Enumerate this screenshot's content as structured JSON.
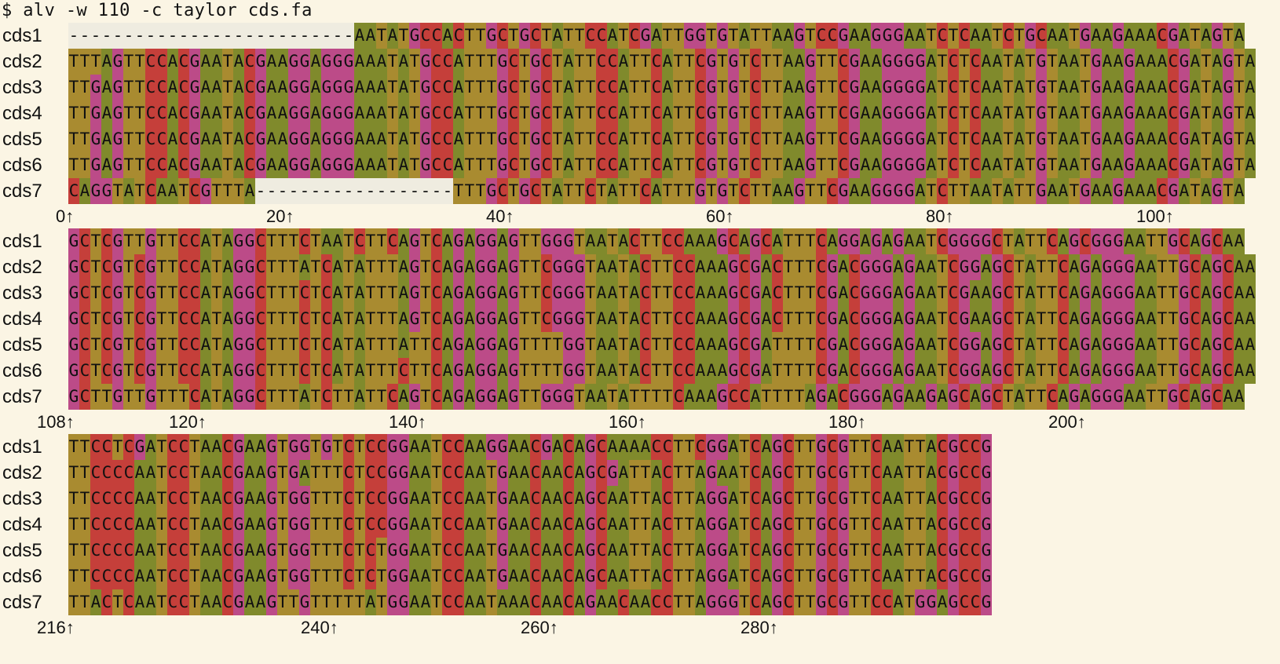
{
  "terminal": {
    "command": "$ alv -w 110 -c taylor cds.fa"
  },
  "colors": {
    "A": "#808a2c",
    "C": "#c53f3a",
    "G": "#bc4b88",
    "T": "#a98b30",
    "gap": "#efece0"
  },
  "blocks": [
    {
      "start": 0,
      "rows": [
        {
          "name": "cds1",
          "seq": "--------------------------AATATGCCACTTGCTGCTATTCCATCGATTGGTGTATTAAGTCCGAAGGGAATCTCAATCTGCAATGAAGAAACGATAGTA"
        },
        {
          "name": "cds2",
          "seq": "TTTAGTTCCACGAATACGAAGGAGGGAAATATGCCATTTGCTGCTATTCCATTCATTCGTGTCTTAAGTTCGAAGGGGATCTCAATATGTAATGAAGAAACGATAGTA"
        },
        {
          "name": "cds3",
          "seq": "TTGAGTTCCACGAATACGAAGGAGGGAAATATGCCATTTGCTGCTATTCCATTCATTCGTGTCTTAAGTTCGAAGGGGATCTCAATATGTAATGAAGAAACGATAGTA"
        },
        {
          "name": "cds4",
          "seq": "TTGAGTTCCACGAATACGAAGGAGGGAAATATGCCATTTGCTGCTATTCCATTCATTCGTGTCTTAAGTTCGAAGGGGATCTCAATATGTAATGAAGAAACGATAGTA"
        },
        {
          "name": "cds5",
          "seq": "TTGAGTTCCACGAATACGAAGGAGGGAAATATGCCATTTGCTGCTATTCCATTCATTCGTGTCTTAAGTTCGAAGGGGATCTCAATATGTAATGAAGAAACGATAGTA"
        },
        {
          "name": "cds6",
          "seq": "TTGAGTTCCACGAATACGAAGGAGGGAAATATGCCATTTGCTGCTATTCCATTCATTCGTGTCTTAAGTTCGAAGGGGATCTCAATATGTAATGAAGAAACGATAGTA"
        },
        {
          "name": "cds7",
          "seq": "CAGGTATCAATCGTTTA------------------TTTGCTGCTATTCTATTCATTTGTGTCTTAAGTTCGAAGGGGATCTTAATATTGAATGAAGAAACGATAGTA"
        }
      ],
      "ticks": [
        "0↑",
        "20↑",
        "40↑",
        "60↑",
        "80↑",
        "100↑"
      ]
    },
    {
      "start": 108,
      "rows": [
        {
          "name": "cds1",
          "seq": "GCTCGTTGTTCCATAGGCTTTCTAATCTTCAGTCAGAGGAGTTGGGTAATACTTCCAAAGCAGCATTTCAGGAGAGAATCGGGGCTATTCAGCGGGAATTGCAGCAA"
        },
        {
          "name": "cds2",
          "seq": "GCTCGTCGTTCCATAGGCTTTATCATATTTAGTCAGAGGAGTTCGGGTAATACTTCCAAAGCGACTTTCGACGGGAGAATCGGAGCTATTCAGAGGGAATTGCAGCAA"
        },
        {
          "name": "cds3",
          "seq": "GCTCGTCGTTCCATAGGCTTTCTCATATTTAGTCAGAGGAGTTCGGGTAATACTTCCAAAGCGACTTTCGACGGGAGAATCGAAGCTATTCAGAGGGAATTGCAGCAA"
        },
        {
          "name": "cds4",
          "seq": "GCTCGTCGTTCCATAGGCTTTCTCATATTTAGTCAGAGGAGTTCGGGTAATACTTCCAAAGCGACTTTCGACGGGAGAATCGAAGCTATTCAGAGGGAATTGCAGCAA"
        },
        {
          "name": "cds5",
          "seq": "GCTCGTCGTTCCATAGGCTTTCTCATATTTATTCAGAGGAGTTTTGGTAATACTTCCAAAGCGATTTTCGACGGGAGAATCGGAGCTATTCAGAGGGAATTGCAGCAA"
        },
        {
          "name": "cds6",
          "seq": "GCTCGTCGTTCCATAGGCTTTCTCATATTTCTTCAGAGGAGTTTTGGTAATACTTCCAAAGCGATTTTCGACGGGAGAATCGGAGCTATTCAGAGGGAATTGCAGCAA"
        },
        {
          "name": "cds7",
          "seq": "GCTTGTTGTTTCATAGGCTTTATCTTATTCAGTCAGAGGAGTTGGGTAATATTTTCAAAGCCATTTTAGACGGGAGAAGAGCAGCTATTCAGAGGGAATTGCAGCAA"
        }
      ],
      "ticks": [
        "108↑",
        "120↑",
        "140↑",
        "160↑",
        "180↑",
        "200↑"
      ]
    },
    {
      "start": 216,
      "rows": [
        {
          "name": "cds1",
          "seq": "TTCCTCGATCCTAACGAAGTGGTGTCTCCGGAATCCAAGGAACGACAGCAAAACCTTCGGATCAGCTTGCGTTCAATTACGCCG"
        },
        {
          "name": "cds2",
          "seq": "TTCCCCAATCCTAACGAAGTGATTTCTCCGGAATCCAATGAACAACAGCGATTACTTAGAATCAGCTTGCGTTCAATTACGCCG"
        },
        {
          "name": "cds3",
          "seq": "TTCCCCAATCCTAACGAAGTGGTTTCTCCGGAATCCAATGAACAACAGCAATTACTTAGGATCAGCTTGCGTTCAATTACGCCG"
        },
        {
          "name": "cds4",
          "seq": "TTCCCCAATCCTAACGAAGTGGTTTCTCCGGAATCCAATGAACAACAGCAATTACTTAGGATCAGCTTGCGTTCAATTACGCCG"
        },
        {
          "name": "cds5",
          "seq": "TTCCCCAATCCTAACGAAGTGGTTTCTCTGGAATCCAATGAACAACAGCAATTACTTAGGATCAGCTTGCGTTCAATTACGCCG"
        },
        {
          "name": "cds6",
          "seq": "TTCCCCAATCCTAACGAAGTGGTTTCTCTGGAATCCAATGAACAACAGCAATTACTTAGGATCAGCTTGCGTTCAATTACGCCG"
        },
        {
          "name": "cds7",
          "seq": "TTACTCAATCCTAACGAAGTTGTTTTTATGGAATCCAATAAACAACAGAACAACCTTAGGGTCAGCTTGCGTTCCATGGAGCCG"
        }
      ],
      "ticks": [
        "216↑",
        "240↑",
        "260↑",
        "280↑"
      ]
    }
  ]
}
